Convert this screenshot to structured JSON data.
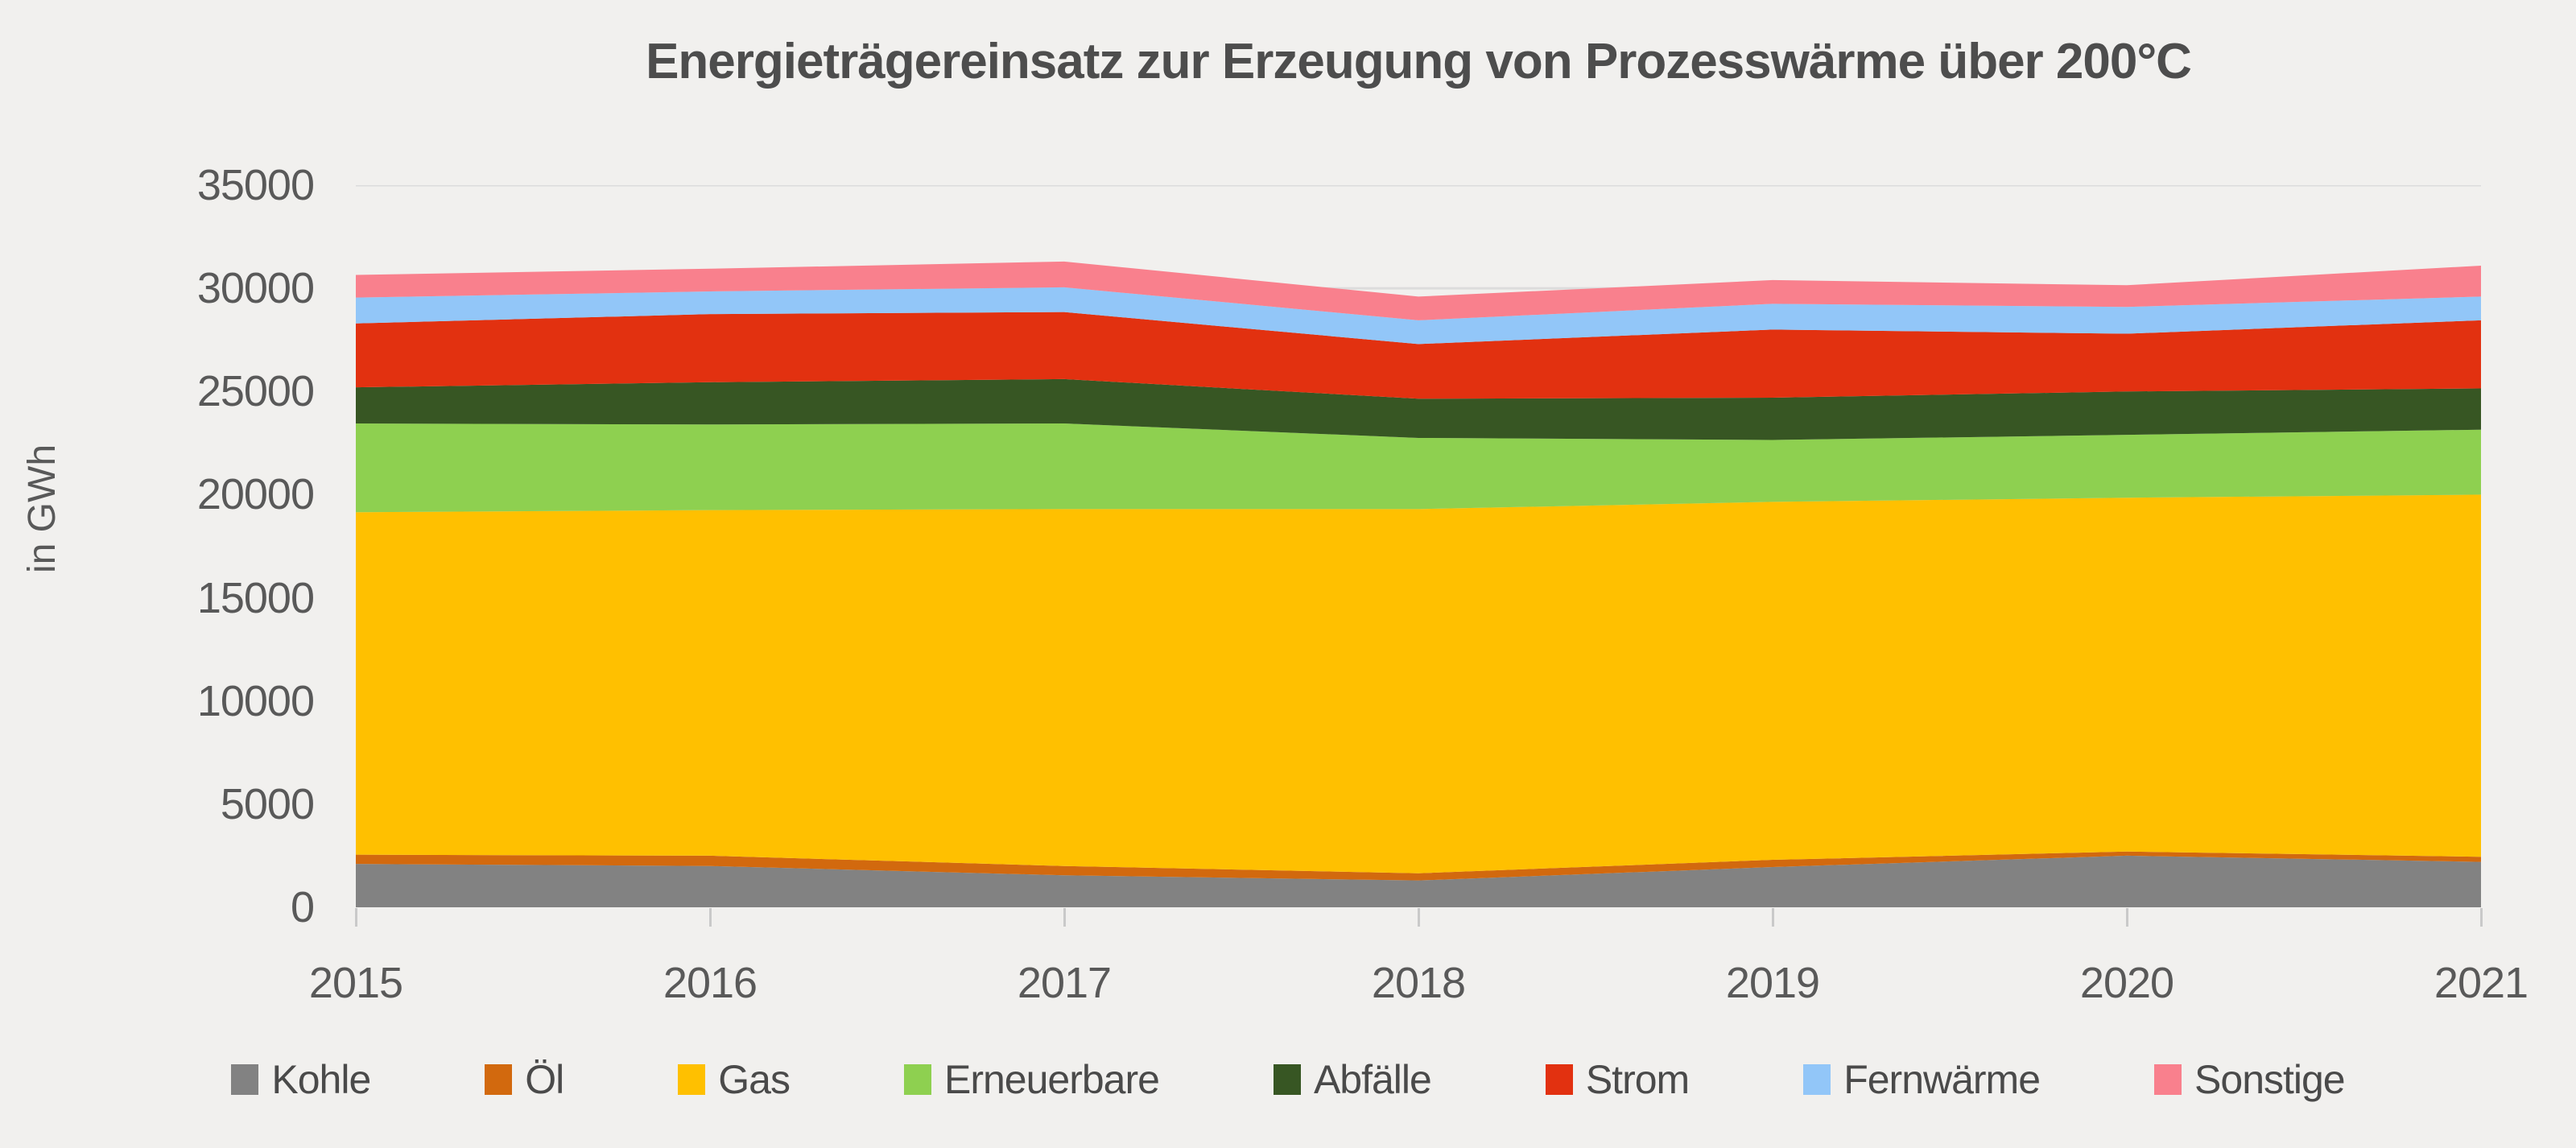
{
  "title": "Energieträgereinsatz zur Erzeugung von Prozesswärme über 200°C",
  "background_color": "#f1f0ee",
  "text_color": "#595959",
  "gridline_color": "#dcdcdc",
  "tick_color": "#c9c9c9",
  "y_axis": {
    "label": "in GWh",
    "max": 35000,
    "ticks": [
      0,
      5000,
      10000,
      15000,
      20000,
      25000,
      30000,
      35000
    ]
  },
  "x_axis": {
    "labels": [
      "2015",
      "2016",
      "2017",
      "2018",
      "2019",
      "2020",
      "2021"
    ]
  },
  "chart_data": {
    "type": "area",
    "stacked": true,
    "title": "Energieträgereinsatz zur Erzeugung von Prozesswärme über 200°C",
    "xlabel": "",
    "ylabel": "in GWh",
    "ylim": [
      0,
      35000
    ],
    "grid": "horizontal-faint",
    "legend_position": "bottom",
    "x": [
      2015,
      2016,
      2017,
      2018,
      2019,
      2020,
      2021
    ],
    "series": [
      {
        "name": "Kohle",
        "color": "#828282",
        "values": [
          2100,
          2000,
          1550,
          1300,
          1950,
          2500,
          2200
        ]
      },
      {
        "name": "Öl",
        "color": "#d2690e",
        "values": [
          450,
          500,
          450,
          350,
          350,
          200,
          250
        ]
      },
      {
        "name": "Gas",
        "color": "#ffc000",
        "values": [
          16600,
          16750,
          17300,
          17650,
          17350,
          17150,
          17550
        ]
      },
      {
        "name": "Erneuerbare",
        "color": "#8ed050",
        "values": [
          4300,
          4150,
          4150,
          3450,
          3000,
          3050,
          3150
        ]
      },
      {
        "name": "Abfälle",
        "color": "#375623",
        "values": [
          1750,
          2050,
          2150,
          1900,
          2050,
          2100,
          2000
        ]
      },
      {
        "name": "Strom",
        "color": "#e23110",
        "values": [
          3100,
          3300,
          3250,
          2650,
          3300,
          2800,
          3300
        ]
      },
      {
        "name": "Fernwärme",
        "color": "#92c6f8",
        "values": [
          1250,
          1100,
          1200,
          1150,
          1250,
          1300,
          1150
        ]
      },
      {
        "name": "Sonstige",
        "color": "#f9808d",
        "values": [
          1100,
          1100,
          1250,
          1150,
          1150,
          1050,
          1500
        ]
      }
    ],
    "totals": [
      30650,
      30950,
      31300,
      29600,
      30400,
      30150,
      31100
    ]
  }
}
